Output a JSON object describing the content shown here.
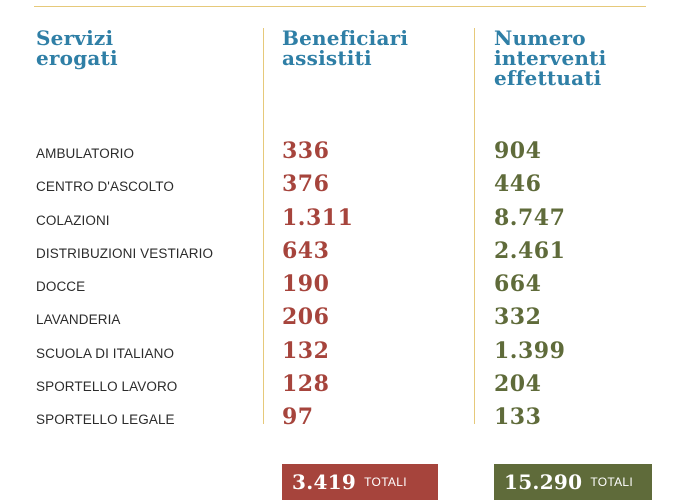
{
  "headers": {
    "services": "Servizi\nerogati",
    "beneficiaries": "Beneficiari\nassistiti",
    "interventions": "Numero\ninterventi\neffettuati"
  },
  "rows": [
    {
      "service": "AMBULATORIO",
      "beneficiaries": "336",
      "interventions": "904"
    },
    {
      "service": "CENTRO D'ASCOLTO",
      "beneficiaries": "376",
      "interventions": "446"
    },
    {
      "service": "COLAZIONI",
      "beneficiaries": "1.311",
      "interventions": "8.747"
    },
    {
      "service": "DISTRIBUZIONI VESTIARIO",
      "beneficiaries": "643",
      "interventions": "2.461"
    },
    {
      "service": "DOCCE",
      "beneficiaries": "190",
      "interventions": "664"
    },
    {
      "service": "LAVANDERIA",
      "beneficiaries": "206",
      "interventions": "332"
    },
    {
      "service": "SCUOLA DI ITALIANO",
      "beneficiaries": "132",
      "interventions": "1.399"
    },
    {
      "service": "SPORTELLO LAVORO",
      "beneficiaries": "128",
      "interventions": "204"
    },
    {
      "service": "SPORTELLO LEGALE",
      "beneficiaries": "97",
      "interventions": "133"
    }
  ],
  "totals": {
    "beneficiaries": "3.419",
    "interventions": "15.290",
    "label": "TOTALI"
  },
  "colors": {
    "header": "#2f7fa6",
    "beneficiaries": "#a6443c",
    "interventions": "#5f6b3a",
    "rule": "#e6c97a"
  }
}
